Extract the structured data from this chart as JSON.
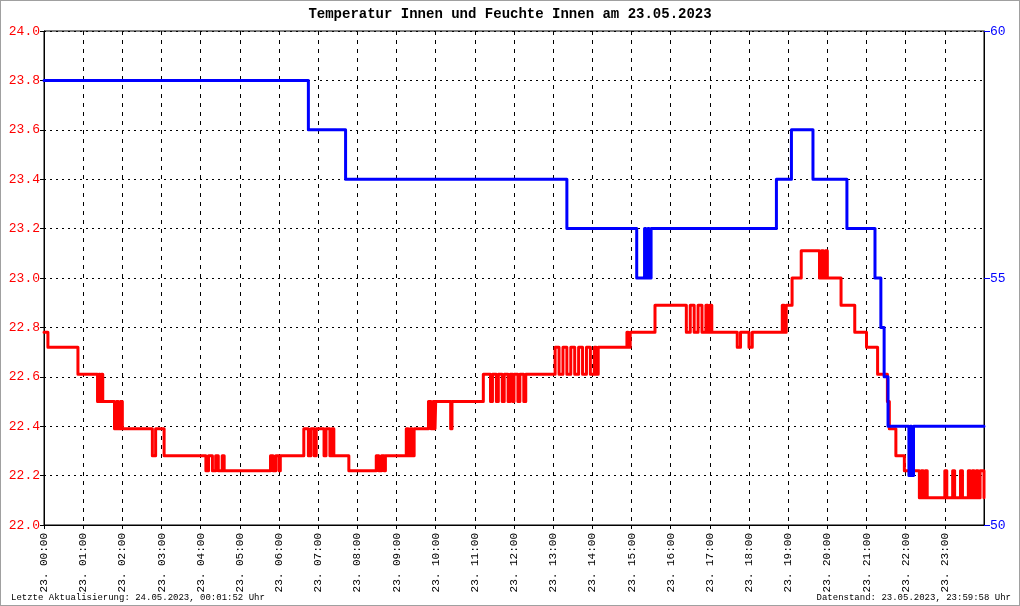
{
  "chart_data": {
    "type": "step",
    "title": "Temperatur Innen und Feuchte Innen am 23.05.2023",
    "annotations": [
      "Letzte Aktualisierung: 24.05.2023, 00:01:52 Uhr",
      "Datenstand: 23.05.2023, 23:59:58 Uhr"
    ],
    "series": [
      {
        "color": "#ff0000",
        "x": [
          "2023-05-23T00:00",
          "2023-05-23T00:06",
          "2023-05-23T00:52",
          "2023-05-23T01:22",
          "2023-05-23T01:24",
          "2023-05-23T01:26",
          "2023-05-23T01:28",
          "2023-05-23T01:30",
          "2023-05-23T01:48",
          "2023-05-23T01:51",
          "2023-05-23T01:54",
          "2023-05-23T01:57",
          "2023-05-23T02:00",
          "2023-05-23T02:46",
          "2023-05-23T02:51",
          "2023-05-23T03:04",
          "2023-05-23T04:08",
          "2023-05-23T04:12",
          "2023-05-23T04:18",
          "2023-05-23T04:23",
          "2023-05-23T04:27",
          "2023-05-23T04:33",
          "2023-05-23T04:36",
          "2023-05-23T05:47",
          "2023-05-23T05:51",
          "2023-05-23T05:55",
          "2023-05-23T06:00",
          "2023-05-23T06:02",
          "2023-05-23T06:38",
          "2023-05-23T06:45",
          "2023-05-23T06:49",
          "2023-05-23T06:54",
          "2023-05-23T06:57",
          "2023-05-23T07:09",
          "2023-05-23T07:12",
          "2023-05-23T07:18",
          "2023-05-23T07:21",
          "2023-05-23T07:24",
          "2023-05-23T07:47",
          "2023-05-23T08:29",
          "2023-05-23T08:33",
          "2023-05-23T08:37",
          "2023-05-23T08:41",
          "2023-05-23T08:43",
          "2023-05-23T09:15",
          "2023-05-23T09:18",
          "2023-05-23T09:21",
          "2023-05-23T09:24",
          "2023-05-23T09:27",
          "2023-05-23T09:49",
          "2023-05-23T09:53",
          "2023-05-23T09:56",
          "2023-05-23T09:59",
          "2023-05-23T10:00",
          "2023-05-23T10:23",
          "2023-05-23T10:25",
          "2023-05-23T11:13",
          "2023-05-23T11:24",
          "2023-05-23T11:27",
          "2023-05-23T11:33",
          "2023-05-23T11:36",
          "2023-05-23T11:42",
          "2023-05-23T11:45",
          "2023-05-23T11:51",
          "2023-05-23T11:54",
          "2023-05-23T11:58",
          "2023-05-23T12:00",
          "2023-05-23T12:06",
          "2023-05-23T12:09",
          "2023-05-23T12:15",
          "2023-05-23T12:18",
          "2023-05-23T13:03",
          "2023-05-23T13:09",
          "2023-05-23T13:15",
          "2023-05-23T13:21",
          "2023-05-23T13:27",
          "2023-05-23T13:33",
          "2023-05-23T13:39",
          "2023-05-23T13:45",
          "2023-05-23T13:51",
          "2023-05-23T13:57",
          "2023-05-23T14:03",
          "2023-05-23T14:06",
          "2023-05-23T14:09",
          "2023-05-23T14:53",
          "2023-05-23T14:55",
          "2023-05-23T14:58",
          "2023-05-23T15:36",
          "2023-05-23T16:24",
          "2023-05-23T16:30",
          "2023-05-23T16:36",
          "2023-05-23T16:42",
          "2023-05-23T16:48",
          "2023-05-23T16:54",
          "2023-05-23T16:57",
          "2023-05-23T17:00",
          "2023-05-23T17:03",
          "2023-05-23T17:42",
          "2023-05-23T17:47",
          "2023-05-23T18:00",
          "2023-05-23T18:05",
          "2023-05-23T18:51",
          "2023-05-23T18:54",
          "2023-05-23T18:57",
          "2023-05-23T19:06",
          "2023-05-23T19:20",
          "2023-05-23T19:48",
          "2023-05-23T19:51",
          "2023-05-23T19:54",
          "2023-05-23T19:57",
          "2023-05-23T20:00",
          "2023-05-23T20:21",
          "2023-05-23T20:42",
          "2023-05-23T21:00",
          "2023-05-23T21:17",
          "2023-05-23T21:32",
          "2023-05-23T21:35",
          "2023-05-23T21:45",
          "2023-05-23T21:58",
          "2023-05-23T22:21",
          "2023-05-23T22:24",
          "2023-05-23T22:27",
          "2023-05-23T22:30",
          "2023-05-23T22:33",
          "2023-05-23T23:00",
          "2023-05-23T23:03",
          "2023-05-23T23:12",
          "2023-05-23T23:15",
          "2023-05-23T23:24",
          "2023-05-23T23:27",
          "2023-05-23T23:36",
          "2023-05-23T23:39",
          "2023-05-23T23:42",
          "2023-05-23T23:45",
          "2023-05-23T23:48",
          "2023-05-23T23:51",
          "2023-05-23T23:54",
          "2023-05-24T00:00"
        ],
        "values": [
          22.78,
          22.72,
          22.61,
          22.5,
          22.61,
          22.5,
          22.61,
          22.5,
          22.39,
          22.5,
          22.39,
          22.5,
          22.39,
          22.28,
          22.39,
          22.28,
          22.22,
          22.28,
          22.22,
          22.28,
          22.22,
          22.28,
          22.22,
          22.28,
          22.22,
          22.28,
          22.22,
          22.28,
          22.39,
          22.28,
          22.39,
          22.28,
          22.39,
          22.28,
          22.39,
          22.28,
          22.39,
          22.28,
          22.22,
          22.28,
          22.22,
          22.28,
          22.22,
          22.28,
          22.39,
          22.28,
          22.39,
          22.28,
          22.39,
          22.5,
          22.39,
          22.5,
          22.39,
          22.5,
          22.39,
          22.5,
          22.61,
          22.5,
          22.61,
          22.5,
          22.61,
          22.5,
          22.61,
          22.5,
          22.61,
          22.5,
          22.61,
          22.5,
          22.61,
          22.5,
          22.61,
          22.72,
          22.61,
          22.72,
          22.61,
          22.72,
          22.61,
          22.72,
          22.61,
          22.72,
          22.61,
          22.72,
          22.61,
          22.72,
          22.78,
          22.72,
          22.78,
          22.89,
          22.78,
          22.89,
          22.78,
          22.89,
          22.78,
          22.89,
          22.78,
          22.89,
          22.78,
          22.72,
          22.78,
          22.72,
          22.78,
          22.89,
          22.78,
          22.89,
          23.0,
          23.11,
          23.0,
          23.11,
          23.0,
          23.11,
          23.0,
          22.89,
          22.78,
          22.72,
          22.61,
          22.5,
          22.39,
          22.28,
          22.22,
          22.11,
          22.22,
          22.11,
          22.22,
          22.11,
          22.22,
          22.11,
          22.22,
          22.11,
          22.22,
          22.11,
          22.22,
          22.11,
          22.22,
          22.11,
          22.22,
          22.11,
          22.22,
          22.11
        ]
      },
      {
        "color": "#0000ff",
        "axis": "y2",
        "x": [
          "2023-05-23T00:00",
          "2023-05-23T06:45",
          "2023-05-23T07:42",
          "2023-05-23T13:21",
          "2023-05-23T15:08",
          "2023-05-23T15:20",
          "2023-05-23T15:22",
          "2023-05-23T15:25",
          "2023-05-23T15:27",
          "2023-05-23T15:30",
          "2023-05-23T18:42",
          "2023-05-23T19:05",
          "2023-05-23T19:38",
          "2023-05-23T20:30",
          "2023-05-23T21:13",
          "2023-05-23T21:22",
          "2023-05-23T21:27",
          "2023-05-23T21:33",
          "2023-05-23T22:05",
          "2023-05-23T22:07",
          "2023-05-23T22:09",
          "2023-05-23T22:12",
          "2023-05-24T00:00"
        ],
        "values": [
          59,
          58,
          57,
          56,
          55,
          56,
          55,
          56,
          55,
          56,
          57,
          58,
          57,
          56,
          55,
          54,
          53,
          52,
          51,
          52,
          51,
          52,
          52
        ]
      }
    ],
    "xlim": [
      "2023-05-23T00:00",
      "2023-05-24T00:00"
    ],
    "xticks": [
      {
        "value": "2023-05-23T00:00",
        "label": "23. 00:00"
      },
      {
        "value": "2023-05-23T01:00",
        "label": "23. 01:00"
      },
      {
        "value": "2023-05-23T02:00",
        "label": "23. 02:00"
      },
      {
        "value": "2023-05-23T03:00",
        "label": "23. 03:00"
      },
      {
        "value": "2023-05-23T04:00",
        "label": "23. 04:00"
      },
      {
        "value": "2023-05-23T05:00",
        "label": "23. 05:00"
      },
      {
        "value": "2023-05-23T06:00",
        "label": "23. 06:00"
      },
      {
        "value": "2023-05-23T07:00",
        "label": "23. 07:00"
      },
      {
        "value": "2023-05-23T08:00",
        "label": "23. 08:00"
      },
      {
        "value": "2023-05-23T09:00",
        "label": "23. 09:00"
      },
      {
        "value": "2023-05-23T10:00",
        "label": "23. 10:00"
      },
      {
        "value": "2023-05-23T11:00",
        "label": "23. 11:00"
      },
      {
        "value": "2023-05-23T12:00",
        "label": "23. 12:00"
      },
      {
        "value": "2023-05-23T13:00",
        "label": "23. 13:00"
      },
      {
        "value": "2023-05-23T14:00",
        "label": "23. 14:00"
      },
      {
        "value": "2023-05-23T15:00",
        "label": "23. 15:00"
      },
      {
        "value": "2023-05-23T16:00",
        "label": "23. 16:00"
      },
      {
        "value": "2023-05-23T17:00",
        "label": "23. 17:00"
      },
      {
        "value": "2023-05-23T18:00",
        "label": "23. 18:00"
      },
      {
        "value": "2023-05-23T19:00",
        "label": "23. 19:00"
      },
      {
        "value": "2023-05-23T20:00",
        "label": "23. 20:00"
      },
      {
        "value": "2023-05-23T21:00",
        "label": "23. 21:00"
      },
      {
        "value": "2023-05-23T22:00",
        "label": "23. 22:00"
      },
      {
        "value": "2023-05-23T23:00",
        "label": "23. 23:00"
      }
    ],
    "ylim": [
      22,
      24
    ],
    "yticks": [
      {
        "value": 22,
        "label": "22.0"
      },
      {
        "value": 22.2,
        "label": "22.2"
      },
      {
        "value": 22.4,
        "label": "22.4"
      },
      {
        "value": 22.6,
        "label": "22.6"
      },
      {
        "value": 22.8,
        "label": "22.8"
      },
      {
        "value": 23,
        "label": "23.0"
      },
      {
        "value": 23.2,
        "label": "23.2"
      },
      {
        "value": 23.4,
        "label": "23.4"
      },
      {
        "value": 23.6,
        "label": "23.6"
      },
      {
        "value": 23.8,
        "label": "23.8"
      },
      {
        "value": 24,
        "label": "24.0"
      }
    ],
    "y2lim": [
      50,
      60
    ],
    "y2ticks": [
      50,
      55,
      60
    ],
    "grid": true,
    "marker": "none",
    "line_style": "solid"
  }
}
